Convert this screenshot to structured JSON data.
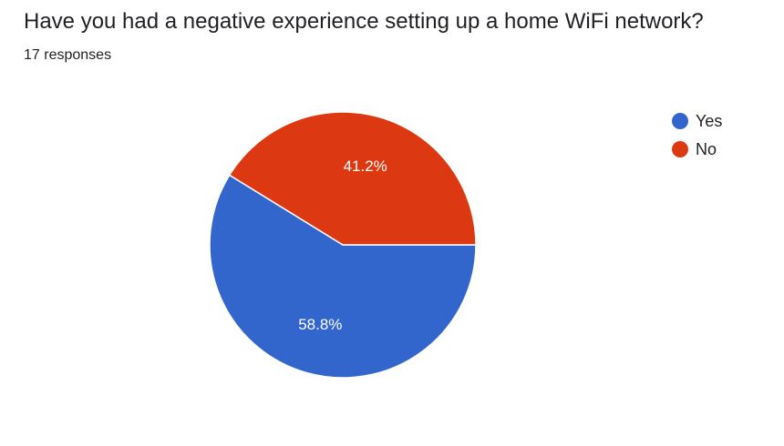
{
  "header": {
    "title": "Have you had a negative experience setting up a home WiFi network?",
    "responses": "17 responses"
  },
  "chart_data": {
    "type": "pie",
    "title": "Have you had a negative experience setting up a home WiFi network?",
    "categories": [
      "Yes",
      "No"
    ],
    "values": [
      58.8,
      41.2
    ],
    "labels": [
      "58.8%",
      "41.2%"
    ],
    "colors": [
      "#3366cc",
      "#dc3912"
    ],
    "legend_position": "top-right"
  }
}
